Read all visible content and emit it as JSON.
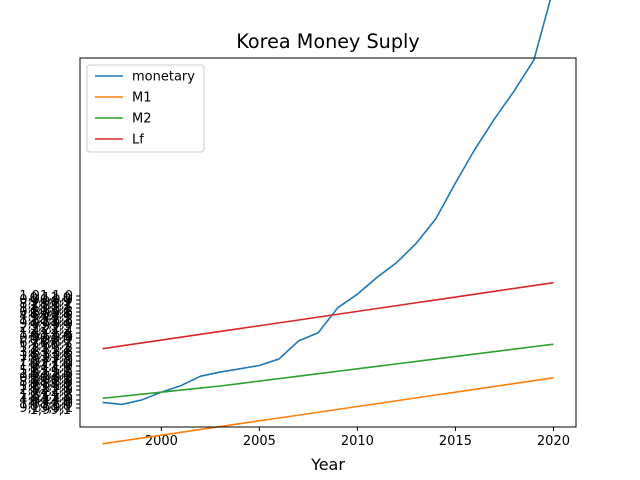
{
  "chart_data": {
    "type": "line",
    "title": "Korea Money Suply",
    "xlabel": "Year",
    "ylabel": "",
    "xlim": [
      1995.85,
      2021.15
    ],
    "ylim": [
      0,
      900
    ],
    "x_ticks": [
      2000,
      2005,
      2010,
      2015,
      2020
    ],
    "x": [
      1997,
      1998,
      1999,
      2000,
      2001,
      2002,
      2003,
      2004,
      2005,
      2006,
      2007,
      2008,
      2009,
      2010,
      2011,
      2012,
      2013,
      2014,
      2015,
      2016,
      2017,
      2018,
      2019,
      2020
    ],
    "series": [
      {
        "name": "monetary",
        "color": "#1f77b4",
        "values": [
          60,
          55,
          66,
          85,
          101,
          124,
          134,
          142,
          150,
          166,
          210,
          230,
          291,
          324,
          365,
          401,
          448,
          508,
          595,
          678,
          752,
          820,
          895,
          1070
        ]
      },
      {
        "name": "M1",
        "color": "#ff7f0e",
        "values": [
          -41,
          -34,
          -27,
          -20,
          -13,
          -6,
          1,
          8,
          15,
          22,
          29,
          36,
          43,
          50,
          57,
          64,
          71,
          78,
          85,
          92,
          99,
          106,
          113,
          120
        ]
      },
      {
        "name": "M2",
        "color": "#2ca02c",
        "values": [
          70,
          75,
          80,
          85,
          90,
          95,
          100,
          106,
          112,
          118,
          124,
          130,
          136,
          142,
          148,
          154,
          160,
          166,
          172,
          178,
          184,
          190,
          196,
          202
        ]
      },
      {
        "name": "Lf",
        "color": "#d62728",
        "values": [
          191,
          198,
          205,
          212,
          219,
          226,
          233,
          240,
          247,
          254,
          261,
          268,
          275,
          282,
          289,
          296,
          303,
          310,
          317,
          324,
          331,
          338,
          345,
          352
        ]
      }
    ],
    "legend_position": "upper-left",
    "grid": false
  }
}
